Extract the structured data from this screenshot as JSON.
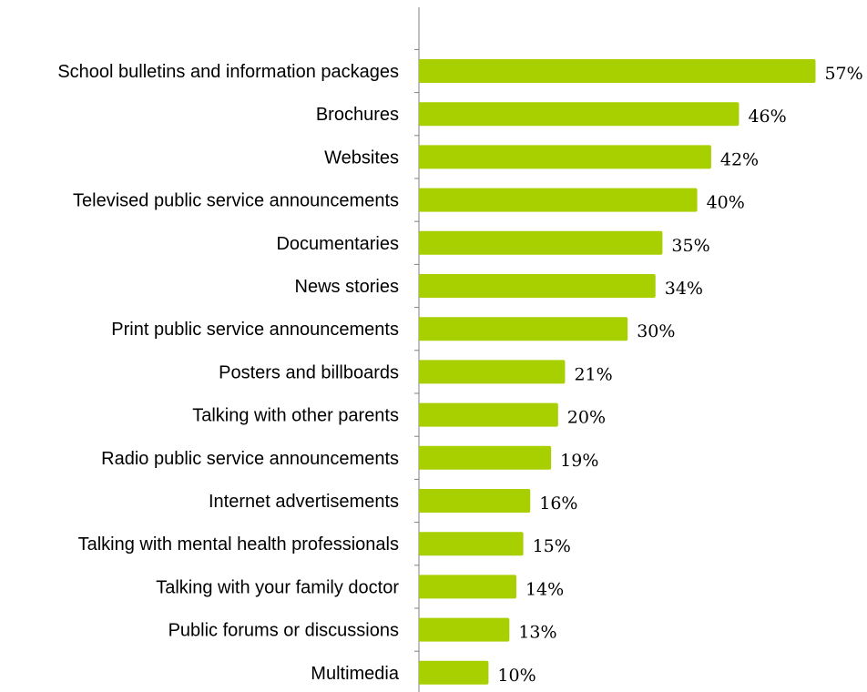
{
  "chart_data": {
    "type": "bar",
    "orientation": "horizontal",
    "bar_color": "#a8cf00",
    "value_suffix": "%",
    "grid": false,
    "legend": "none",
    "categories": [
      "School bulletins and information packages",
      "Brochures",
      "Websites",
      "Televised public service announcements",
      "Documentaries",
      "News stories",
      "Print public service announcements",
      "Posters and billboards",
      "Talking with other parents",
      "Radio public service announcements",
      "Internet advertisements",
      "Talking with mental health professionals",
      "Talking with your family doctor",
      "Public forums or discussions",
      "Multimedia"
    ],
    "values": [
      57,
      46,
      42,
      40,
      35,
      34,
      30,
      21,
      20,
      19,
      16,
      15,
      14,
      13,
      10
    ],
    "value_labels": [
      "57%",
      "46%",
      "42%",
      "40%",
      "35%",
      "34%",
      "30%",
      "21%",
      "20%",
      "19%",
      "16%",
      "15%",
      "14%",
      "13%",
      "10%"
    ]
  }
}
